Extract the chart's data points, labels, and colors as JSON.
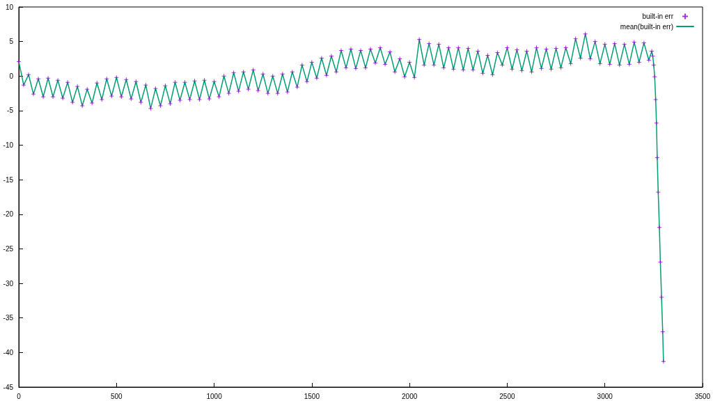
{
  "chart_data": {
    "type": "line",
    "x": [
      0,
      25,
      50,
      75,
      100,
      125,
      150,
      175,
      200,
      225,
      250,
      275,
      300,
      325,
      350,
      375,
      400,
      425,
      450,
      475,
      500,
      525,
      550,
      575,
      600,
      625,
      650,
      675,
      700,
      725,
      750,
      775,
      800,
      825,
      850,
      875,
      900,
      925,
      950,
      975,
      1000,
      1025,
      1050,
      1075,
      1100,
      1125,
      1150,
      1175,
      1200,
      1225,
      1250,
      1275,
      1300,
      1325,
      1350,
      1375,
      1400,
      1425,
      1450,
      1475,
      1500,
      1525,
      1550,
      1575,
      1600,
      1625,
      1650,
      1675,
      1700,
      1725,
      1750,
      1775,
      1800,
      1825,
      1850,
      1875,
      1900,
      1925,
      1950,
      1975,
      2000,
      2025,
      2050,
      2075,
      2100,
      2125,
      2150,
      2175,
      2200,
      2225,
      2250,
      2275,
      2300,
      2325,
      2350,
      2375,
      2400,
      2425,
      2450,
      2475,
      2500,
      2525,
      2550,
      2575,
      2600,
      2625,
      2650,
      2675,
      2700,
      2725,
      2750,
      2775,
      2800,
      2825,
      2850,
      2875,
      2900,
      2925,
      2950,
      2975,
      3000,
      3025,
      3050,
      3075,
      3100,
      3125,
      3150,
      3175,
      3200,
      3225,
      3240,
      3245,
      3250,
      3255,
      3260,
      3264,
      3268,
      3273,
      3279,
      3284,
      3290,
      3296,
      3300
    ],
    "series": [
      {
        "name": "built-in err",
        "type": "scatter",
        "marker": "cross",
        "color": "#9400d3",
        "values": [
          2.1,
          -1.3,
          0.2,
          -2.6,
          -0.4,
          -3.0,
          -0.3,
          -3.0,
          -0.6,
          -3.2,
          -0.9,
          -3.8,
          -1.5,
          -4.3,
          -1.9,
          -3.9,
          -1.0,
          -3.4,
          -0.4,
          -2.9,
          -0.2,
          -3.0,
          -0.5,
          -3.3,
          -0.8,
          -3.8,
          -1.3,
          -4.7,
          -1.8,
          -4.3,
          -1.4,
          -4.0,
          -0.9,
          -3.5,
          -0.9,
          -3.4,
          -0.7,
          -3.4,
          -0.6,
          -3.3,
          -0.8,
          -3.0,
          0.0,
          -2.5,
          0.5,
          -2.2,
          0.6,
          -1.9,
          0.9,
          -2.1,
          0.3,
          -2.5,
          0.0,
          -2.5,
          0.3,
          -2.3,
          0.6,
          -1.6,
          1.6,
          -0.8,
          2.0,
          -0.3,
          2.6,
          0.1,
          2.9,
          0.6,
          3.7,
          1.2,
          3.9,
          1.1,
          3.7,
          1.2,
          3.9,
          1.9,
          4.1,
          1.7,
          3.5,
          0.6,
          2.5,
          -0.1,
          2.0,
          -0.2,
          5.3,
          1.6,
          4.7,
          1.6,
          4.6,
          1.2,
          4.1,
          1.0,
          4.1,
          0.9,
          4.0,
          0.9,
          3.6,
          0.4,
          3.0,
          0.2,
          3.4,
          1.6,
          4.1,
          1.0,
          3.8,
          0.8,
          3.6,
          0.6,
          4.1,
          1.1,
          3.9,
          1.0,
          4.0,
          1.2,
          4.1,
          1.8,
          5.4,
          2.6,
          6.1,
          2.5,
          5.0,
          1.8,
          4.6,
          1.7,
          4.7,
          1.6,
          4.6,
          1.7,
          4.9,
          2.0,
          4.8,
          2.3,
          3.6,
          2.9,
          1.6,
          -0.1,
          -3.4,
          -6.8,
          -11.8,
          -16.8,
          -21.9,
          -26.9,
          -32.0,
          -37.0,
          -41.3
        ]
      },
      {
        "name": "mean(built-in err)",
        "marker": "none",
        "line_style": "solid",
        "color": "#009e73",
        "values": [
          2.1,
          -1.3,
          0.2,
          -2.6,
          -0.4,
          -3.0,
          -0.3,
          -3.0,
          -0.6,
          -3.2,
          -0.9,
          -3.8,
          -1.5,
          -4.3,
          -1.9,
          -3.9,
          -1.0,
          -3.4,
          -0.4,
          -2.9,
          -0.2,
          -3.0,
          -0.5,
          -3.3,
          -0.8,
          -3.8,
          -1.3,
          -4.7,
          -1.8,
          -4.3,
          -1.4,
          -4.0,
          -0.9,
          -3.5,
          -0.9,
          -3.4,
          -0.7,
          -3.4,
          -0.6,
          -3.3,
          -0.8,
          -3.0,
          0.0,
          -2.5,
          0.5,
          -2.2,
          0.6,
          -1.9,
          0.9,
          -2.1,
          0.3,
          -2.5,
          0.0,
          -2.5,
          0.3,
          -2.3,
          0.6,
          -1.6,
          1.6,
          -0.8,
          2.0,
          -0.3,
          2.6,
          0.1,
          2.9,
          0.6,
          3.7,
          1.2,
          3.9,
          1.1,
          3.7,
          1.2,
          3.9,
          1.9,
          4.1,
          1.7,
          3.5,
          0.6,
          2.5,
          -0.1,
          2.0,
          -0.2,
          5.3,
          1.6,
          4.7,
          1.6,
          4.6,
          1.2,
          4.1,
          1.0,
          4.1,
          0.9,
          4.0,
          0.9,
          3.6,
          0.4,
          3.0,
          0.2,
          3.4,
          1.6,
          4.1,
          1.0,
          3.8,
          0.8,
          3.6,
          0.6,
          4.1,
          1.1,
          3.9,
          1.0,
          4.0,
          1.2,
          4.1,
          1.8,
          5.4,
          2.6,
          6.1,
          2.5,
          5.0,
          1.8,
          4.6,
          1.7,
          4.7,
          1.6,
          4.6,
          1.7,
          4.9,
          2.0,
          4.8,
          2.3,
          3.6,
          2.9,
          1.6,
          -0.1,
          -3.4,
          -6.8,
          -11.8,
          -16.8,
          -21.9,
          -26.9,
          -32.0,
          -37.0,
          -41.3
        ]
      }
    ],
    "xlim": [
      0,
      3500
    ],
    "xticks": [
      0,
      500,
      1000,
      1500,
      2000,
      2500,
      3000,
      3500
    ],
    "ylim": [
      -45,
      10
    ],
    "yticks": [
      -45,
      -40,
      -35,
      -30,
      -25,
      -20,
      -15,
      -10,
      -5,
      0,
      5,
      10
    ],
    "legend": "top right"
  }
}
